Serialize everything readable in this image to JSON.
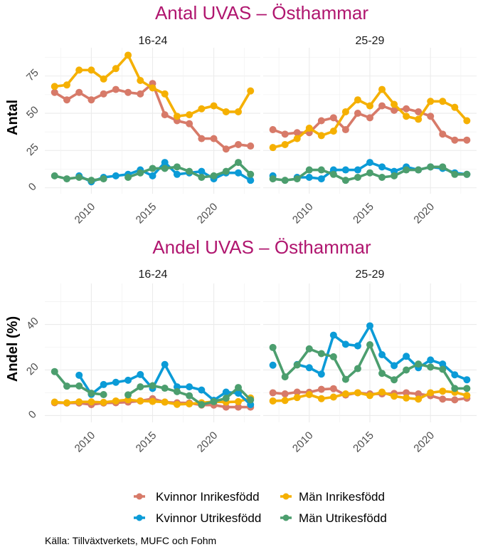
{
  "chart_data": [
    {
      "type": "line",
      "title": "Antal UVAS – Östhammar",
      "ylabel": "Antal",
      "xlabel": "",
      "ylim": [
        -4,
        94
      ],
      "yticks": [
        0,
        25,
        50,
        75
      ],
      "xticks": [
        2010,
        2015,
        2020
      ],
      "xlim": [
        2006.2,
        2023.8
      ],
      "grid": true,
      "x": [
        2007,
        2008,
        2009,
        2010,
        2011,
        2012,
        2013,
        2014,
        2015,
        2016,
        2017,
        2018,
        2019,
        2020,
        2021,
        2022,
        2023
      ],
      "facets": [
        {
          "label": "16-24",
          "series": [
            {
              "name": "Kvinnor Inrikesfödd",
              "values": [
                64,
                59,
                64,
                59,
                63,
                66,
                64,
                63,
                70,
                49,
                45,
                43,
                33,
                33,
                26,
                29,
                28
              ]
            },
            {
              "name": "Kvinnor Utrikesfödd",
              "values": [
                null,
                null,
                8,
                4,
                7,
                8,
                9,
                12,
                8,
                17,
                9,
                10,
                11,
                6,
                10,
                10,
                5
              ]
            },
            {
              "name": "Män Inrikesfödd",
              "values": [
                68,
                69,
                79,
                79,
                73,
                80,
                89,
                72,
                67,
                63,
                48,
                49,
                53,
                55,
                51,
                51,
                65
              ]
            },
            {
              "name": "Män Utrikesfödd",
              "values": [
                8,
                6,
                7,
                5,
                6,
                null,
                7,
                10,
                13,
                13,
                14,
                11,
                7,
                8,
                11,
                17,
                9
              ]
            }
          ]
        },
        {
          "label": "25-29",
          "series": [
            {
              "name": "Kvinnor Inrikesfödd",
              "values": [
                39,
                36,
                37,
                37,
                45,
                47,
                39,
                50,
                47,
                55,
                52,
                53,
                51,
                48,
                36,
                32,
                32
              ]
            },
            {
              "name": "Kvinnor Utrikesfödd",
              "values": [
                8,
                null,
                7,
                7,
                6,
                12,
                12,
                12,
                17,
                14,
                11,
                14,
                12,
                14,
                13,
                10,
                9
              ]
            },
            {
              "name": "Män Inrikesfödd",
              "values": [
                27,
                29,
                33,
                40,
                35,
                38,
                51,
                59,
                55,
                66,
                56,
                48,
                46,
                58,
                58,
                54,
                45
              ]
            },
            {
              "name": "Män Utrikesfödd",
              "values": [
                6,
                5,
                6,
                12,
                12,
                9,
                5,
                7,
                10,
                7,
                8,
                12,
                12,
                14,
                14,
                9,
                9
              ]
            }
          ]
        }
      ]
    },
    {
      "type": "line",
      "title": "Andel UVAS – Östhammar",
      "ylabel": "Andel (%)",
      "xlabel": "",
      "ylim": [
        -3,
        58
      ],
      "yticks": [
        0,
        20,
        40
      ],
      "xticks": [
        2010,
        2015,
        2020
      ],
      "xlim": [
        2006.2,
        2023.8
      ],
      "grid": true,
      "x": [
        2007,
        2008,
        2009,
        2010,
        2011,
        2012,
        2013,
        2014,
        2015,
        2016,
        2017,
        2018,
        2019,
        2020,
        2021,
        2022,
        2023
      ],
      "facets": [
        {
          "label": "16-24",
          "series": [
            {
              "name": "Kvinnor Inrikesfödd",
              "values": [
                5.6,
                5.5,
                5.5,
                4.8,
                5.5,
                5.6,
                5.9,
                6.4,
                7.4,
                5.9,
                5.6,
                5.5,
                4.6,
                4.6,
                3.7,
                3.7,
                3.7
              ]
            },
            {
              "name": "Kvinnor Utrikesfödd",
              "values": [
                null,
                null,
                17.7,
                9.3,
                13.6,
                14.6,
                15.5,
                18.0,
                11.9,
                22.4,
                12.6,
                12.6,
                11.2,
                6.7,
                10.3,
                9.8,
                4.8
              ]
            },
            {
              "name": "Män Inrikesfödd",
              "values": [
                5.9,
                5.6,
                6.0,
                6.0,
                5.8,
                6.4,
                6.9,
                6.4,
                6.2,
                5.9,
                4.9,
                5.1,
                5.6,
                6.1,
                5.9,
                6.1,
                7.7
              ]
            },
            {
              "name": "Män Utrikesfödd",
              "values": [
                19.3,
                12.9,
                13.0,
                9.8,
                9.2,
                null,
                9.1,
                12.6,
                13.1,
                12.0,
                10.5,
                8.7,
                4.8,
                6.1,
                7.6,
                12.3,
                6.9
              ]
            }
          ]
        },
        {
          "label": "25-29",
          "series": [
            {
              "name": "Kvinnor Inrikesfödd",
              "values": [
                10.0,
                9.5,
                10.3,
                10.2,
                11.5,
                11.8,
                9.0,
                10.0,
                9.5,
                9.5,
                9.7,
                10.0,
                9.5,
                8.7,
                7.2,
                6.9,
                7.6
              ]
            },
            {
              "name": "Kvinnor Utrikesfödd",
              "values": [
                22.1,
                null,
                22.4,
                21.0,
                18.2,
                35.3,
                31.3,
                30.6,
                39.4,
                26.7,
                21.9,
                26.0,
                21.0,
                24.4,
                22.6,
                17.9,
                15.7
              ]
            },
            {
              "name": "Män Inrikesfödd",
              "values": [
                6.4,
                6.6,
                7.9,
                9.2,
                7.4,
                8.1,
                9.5,
                10.0,
                8.8,
                10.3,
                8.5,
                7.7,
                7.2,
                10.0,
                10.7,
                10.2,
                8.8
              ]
            },
            {
              "name": "Män Utrikesfödd",
              "values": [
                29.9,
                17.0,
                22.2,
                29.3,
                27.2,
                25.8,
                15.9,
                20.6,
                31.1,
                18.5,
                15.7,
                20.0,
                22.6,
                21.3,
                20.3,
                11.9,
                11.9
              ]
            }
          ]
        }
      ]
    }
  ],
  "legend": {
    "placement": "bottom",
    "items": [
      {
        "label": "Kvinnor Inrikesfödd",
        "color": "#D77A69"
      },
      {
        "label": "Män Inrikesfödd",
        "color": "#F5B001"
      },
      {
        "label": "Kvinnor Utrikesfödd",
        "color": "#0B9BD7"
      },
      {
        "label": "Män Utrikesfödd",
        "color": "#4C9E6E"
      }
    ]
  },
  "series_colors": {
    "Kvinnor Inrikesfödd": "#D77A69",
    "Kvinnor Utrikesfödd": "#0B9BD7",
    "Män Inrikesfödd": "#F5B001",
    "Män Utrikesfödd": "#4C9E6E"
  },
  "title_color": "#B0166F",
  "caption": "Källa: Tillväxtverkets, MUFC och Fohm"
}
